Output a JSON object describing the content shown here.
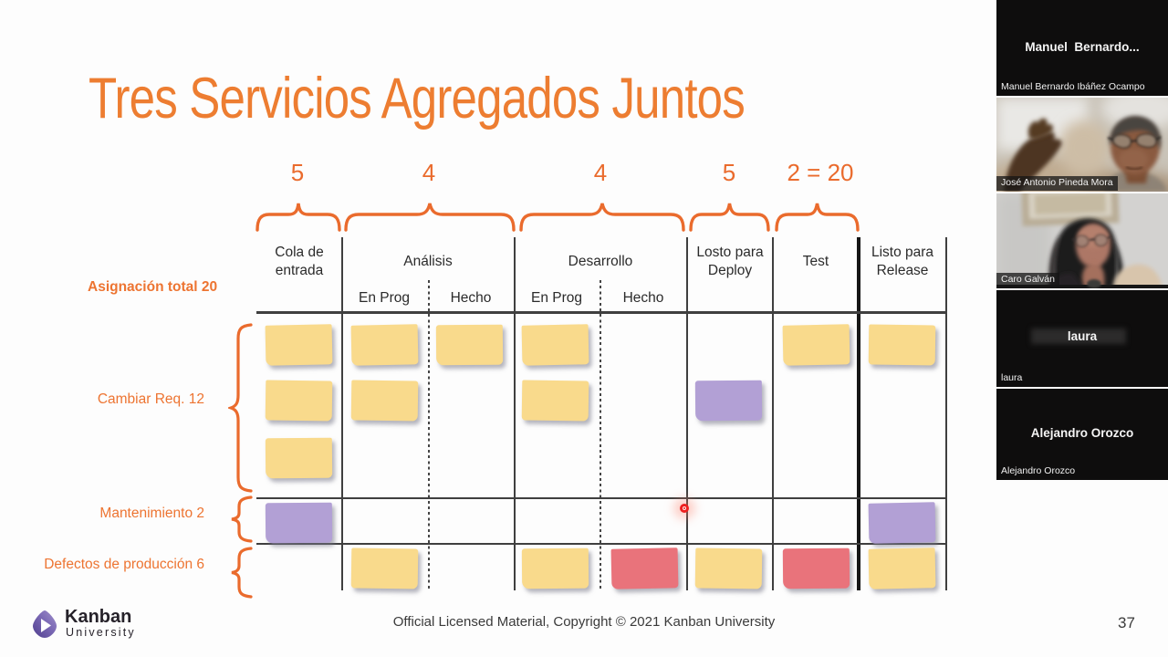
{
  "slide": {
    "title": "Tres Servicios Agregados Juntos",
    "allocation_label": "Asignación total 20",
    "wip_numbers": [
      "5",
      "4",
      "4",
      "5",
      "2 = 20"
    ],
    "columns": [
      {
        "label": "Cola de entrada"
      },
      {
        "label": "Análisis",
        "sub": [
          "En Prog",
          "Hecho"
        ]
      },
      {
        "label": "Desarrollo",
        "sub": [
          "En Prog",
          "Hecho"
        ]
      },
      {
        "label": "Losto para Deploy"
      },
      {
        "label": "Test"
      },
      {
        "label": "Listo para Release"
      }
    ],
    "rows": [
      {
        "label": "Cambiar Req. 12"
      },
      {
        "label": "Mantenimiento 2"
      },
      {
        "label": "Defectos de producción 6"
      }
    ],
    "notes": [
      {
        "row": 0,
        "col": "cola",
        "slot": 0,
        "color": "yellow"
      },
      {
        "row": 0,
        "col": "cola",
        "slot": 1,
        "color": "yellow"
      },
      {
        "row": 0,
        "col": "cola",
        "slot": 2,
        "color": "yellow"
      },
      {
        "row": 0,
        "col": "analisis_prog",
        "slot": 0,
        "color": "yellow"
      },
      {
        "row": 0,
        "col": "analisis_prog",
        "slot": 1,
        "color": "yellow"
      },
      {
        "row": 0,
        "col": "analisis_hecho",
        "slot": 0,
        "color": "yellow"
      },
      {
        "row": 0,
        "col": "des_prog",
        "slot": 0,
        "color": "yellow"
      },
      {
        "row": 0,
        "col": "des_prog",
        "slot": 1,
        "color": "yellow"
      },
      {
        "row": 0,
        "col": "deploy",
        "slot": 1,
        "color": "purple"
      },
      {
        "row": 0,
        "col": "test",
        "slot": 0,
        "color": "yellow"
      },
      {
        "row": 0,
        "col": "release",
        "slot": 0,
        "color": "yellow"
      },
      {
        "row": 1,
        "col": "cola",
        "slot": 0,
        "color": "purple"
      },
      {
        "row": 1,
        "col": "release",
        "slot": 0,
        "color": "purple"
      },
      {
        "row": 2,
        "col": "analisis_prog",
        "slot": 0,
        "color": "yellow"
      },
      {
        "row": 2,
        "col": "des_prog",
        "slot": 0,
        "color": "yellow"
      },
      {
        "row": 2,
        "col": "des_hecho",
        "slot": 0,
        "color": "red"
      },
      {
        "row": 2,
        "col": "deploy",
        "slot": 0,
        "color": "yellow"
      },
      {
        "row": 2,
        "col": "test",
        "slot": 0,
        "color": "red"
      },
      {
        "row": 2,
        "col": "release",
        "slot": 0,
        "color": "yellow"
      }
    ],
    "footer": "Official Licensed Material, Copyright © 2021 Kanban University",
    "page_number": "37",
    "logo": {
      "name": "Kanban",
      "sub": "University"
    }
  },
  "colors": {
    "orange": "#ED7D31",
    "note_yellow": "#F9DA8C",
    "note_purple": "#B2A0D5",
    "note_red": "#E9737B"
  },
  "participants": [
    {
      "display": "Manuel  Bernardo...",
      "label": "Manuel Bernardo Ibáñez Ocampo",
      "video": false
    },
    {
      "display": "",
      "label": "José Antonio Pineda Mora",
      "video": true
    },
    {
      "display": "",
      "label": "Caro Galván",
      "video": true
    },
    {
      "display": "laura",
      "label": "laura",
      "video": false
    },
    {
      "display": "Alejandro Orozco",
      "label": "Alejandro Orozco",
      "video": false
    }
  ]
}
